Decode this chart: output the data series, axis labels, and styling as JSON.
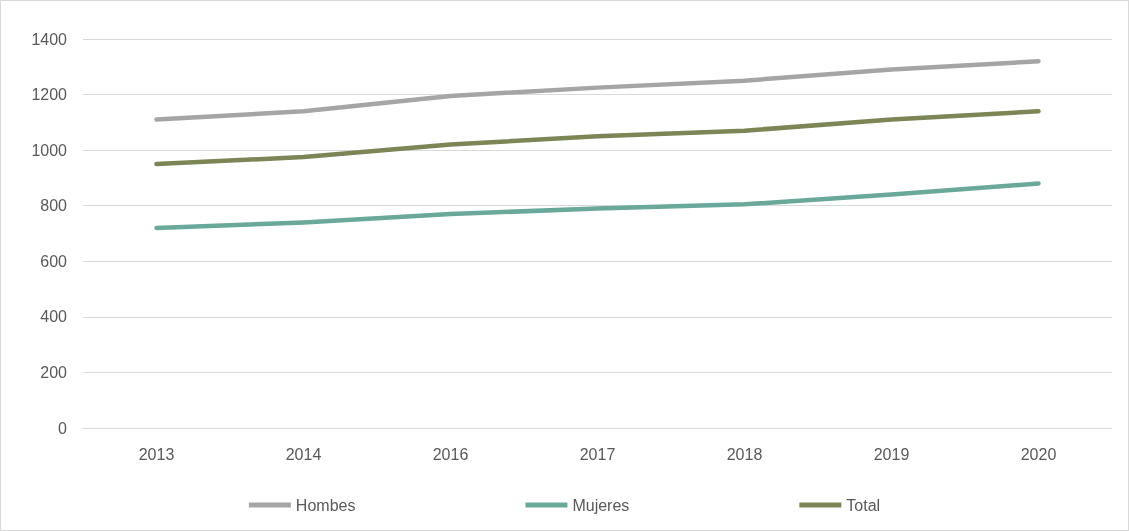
{
  "chart_data": {
    "type": "line",
    "categories": [
      "2013",
      "2014",
      "2016",
      "2017",
      "2018",
      "2019",
      "2020"
    ],
    "series": [
      {
        "name": "Hombes",
        "color": "#a5a5a5",
        "values": [
          1110,
          1140,
          1195,
          1225,
          1250,
          1290,
          1320
        ]
      },
      {
        "name": "Mujeres",
        "color": "#6aa89a",
        "values": [
          720,
          740,
          770,
          790,
          805,
          840,
          880
        ]
      },
      {
        "name": "Total",
        "color": "#7b8556",
        "values": [
          950,
          975,
          1020,
          1050,
          1070,
          1110,
          1140
        ]
      }
    ],
    "ylim": [
      0,
      1400
    ],
    "yticks": [
      0,
      200,
      400,
      600,
      800,
      1000,
      1200,
      1400
    ],
    "grid": "y",
    "legend": "bottom",
    "marker": "none",
    "line_style": "solid"
  }
}
